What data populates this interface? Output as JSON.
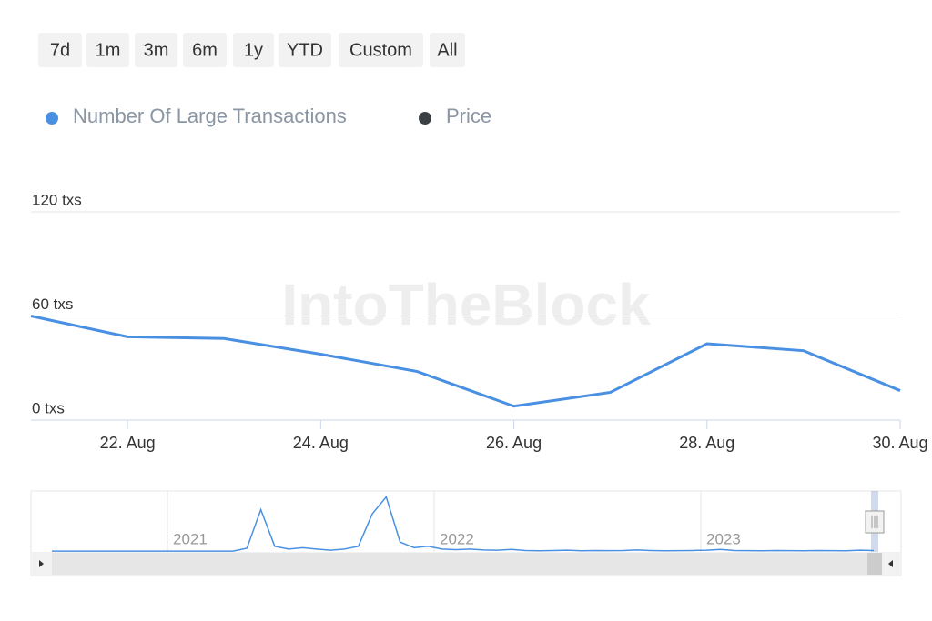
{
  "chart_data": {
    "type": "line",
    "range_buttons": [
      "7d",
      "1m",
      "3m",
      "6m",
      "1y",
      "YTD",
      "Custom",
      "All"
    ],
    "watermark": "IntoTheBlock",
    "categories": [
      null,
      "22. Aug",
      null,
      "24. Aug",
      null,
      "26. Aug",
      null,
      "28. Aug",
      null,
      "30. Aug"
    ],
    "series": [
      {
        "name": "Number Of Large Transactions",
        "color": "#4a90e2",
        "values": [
          60,
          48,
          47,
          38,
          28,
          8,
          16,
          44,
          40,
          17
        ]
      },
      {
        "name": "Price",
        "color": "#3a3f44",
        "values": [
          null,
          null,
          null,
          null,
          null,
          null,
          null,
          null,
          null,
          null
        ]
      }
    ],
    "ylim": [
      0,
      120
    ],
    "yticks": [
      {
        "value": 0,
        "label": "0 txs"
      },
      {
        "value": 60,
        "label": "60 txs"
      },
      {
        "value": 120,
        "label": "120 txs"
      }
    ],
    "grid": true,
    "navigator": {
      "labels": [
        "2021",
        "2022",
        "2023"
      ],
      "ylim": [
        0,
        2000
      ],
      "values": [
        30,
        30,
        30,
        30,
        30,
        30,
        30,
        30,
        30,
        30,
        30,
        30,
        30,
        30,
        130,
        1500,
        200,
        100,
        150,
        100,
        60,
        100,
        200,
        1350,
        1950,
        350,
        150,
        200,
        100,
        80,
        100,
        70,
        60,
        90,
        50,
        40,
        50,
        60,
        40,
        50,
        45,
        50,
        70,
        50,
        40,
        45,
        50,
        60,
        90,
        50,
        45,
        40,
        50,
        45,
        40,
        50,
        45,
        40,
        60,
        50
      ]
    }
  }
}
